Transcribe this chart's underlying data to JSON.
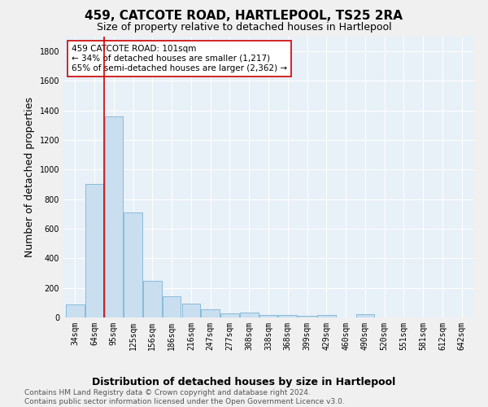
{
  "title": "459, CATCOTE ROAD, HARTLEPOOL, TS25 2RA",
  "subtitle": "Size of property relative to detached houses in Hartlepool",
  "xlabel": "Distribution of detached houses by size in Hartlepool",
  "ylabel": "Number of detached properties",
  "categories": [
    "34sqm",
    "64sqm",
    "95sqm",
    "125sqm",
    "156sqm",
    "186sqm",
    "216sqm",
    "247sqm",
    "277sqm",
    "308sqm",
    "338sqm",
    "368sqm",
    "399sqm",
    "429sqm",
    "460sqm",
    "490sqm",
    "520sqm",
    "551sqm",
    "581sqm",
    "612sqm",
    "642sqm"
  ],
  "values": [
    90,
    905,
    1360,
    710,
    248,
    145,
    95,
    55,
    28,
    35,
    18,
    15,
    12,
    18,
    0,
    20,
    0,
    0,
    0,
    0,
    0
  ],
  "bar_color": "#c9dff0",
  "bar_edge_color": "#7ab4d4",
  "bg_color": "#e8f0f8",
  "grid_color": "#ffffff",
  "vline_color": "#cc0000",
  "annotation_text": "459 CATCOTE ROAD: 101sqm\n← 34% of detached houses are smaller (1,217)\n65% of semi-detached houses are larger (2,362) →",
  "annotation_box_color": "#ffffff",
  "annotation_box_edge": "#cc0000",
  "footnote": "Contains HM Land Registry data © Crown copyright and database right 2024.\nContains public sector information licensed under the Open Government Licence v3.0.",
  "ylim": [
    0,
    1900
  ],
  "yticks": [
    0,
    200,
    400,
    600,
    800,
    1000,
    1200,
    1400,
    1600,
    1800
  ],
  "title_fontsize": 11,
  "subtitle_fontsize": 9,
  "ylabel_fontsize": 9,
  "xlabel_fontsize": 9,
  "tick_fontsize": 7,
  "annotation_fontsize": 7.5,
  "footnote_fontsize": 6.5
}
